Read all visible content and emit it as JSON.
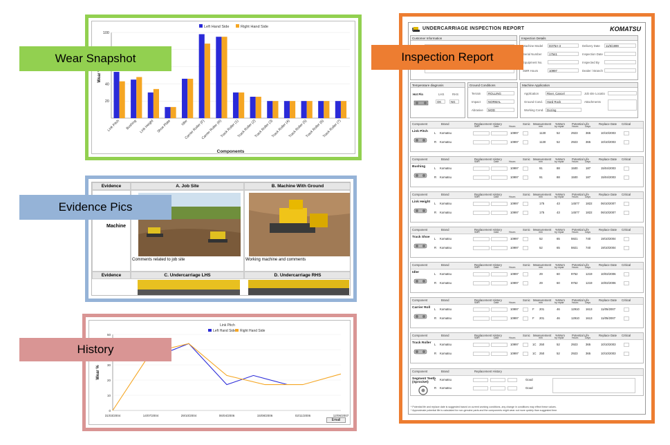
{
  "labels": {
    "wear": "Wear Snapshot",
    "evidence": "Evidence Pics",
    "history": "History",
    "report": "Inspection Report"
  },
  "colors": {
    "green": "#92d050",
    "blue": "#95b3d7",
    "pink": "#d99594",
    "orange": "#ed7d31",
    "left_series": "#2a2ad8",
    "right_series": "#f5a623"
  },
  "wear_chart": {
    "type": "bar",
    "title": "",
    "legend": [
      "Left Hand Side",
      "Right Hand Side"
    ],
    "xlabel": "Components",
    "ylabel": "Wear %",
    "ylim": [
      0,
      100
    ],
    "yticks": [
      20,
      40,
      60,
      80,
      100
    ],
    "categories": [
      "Link Pitch",
      "Bushing",
      "Link Height",
      "Shoe Plate",
      "Idler",
      "Carrier Roller (F)",
      "Carrier Roller (R)",
      "Track Roller (1)",
      "Track Roller (2)",
      "Track Roller (3)",
      "Track Roller (4)",
      "Track Roller (5)",
      "Track Roller (6)",
      "Track Roller (7)"
    ],
    "series": [
      {
        "name": "Left Hand Side",
        "values": [
          54,
          45,
          30,
          13,
          46,
          98,
          95,
          30,
          25,
          20,
          20,
          20,
          20,
          20
        ]
      },
      {
        "name": "Right Hand Side",
        "values": [
          43,
          48,
          34,
          13,
          46,
          87,
          95,
          30,
          25,
          20,
          20,
          20,
          20,
          20
        ]
      }
    ]
  },
  "evidence": {
    "col_label": "Evidence",
    "row_label": "Machine",
    "a_title": "A. Job Site",
    "b_title": "B. Machine With Ground",
    "a_caption": "Comments related to job site",
    "b_caption": "Working machine and comments",
    "c_title": "C. Undercarriage LHS",
    "d_title": "D. Undercarriage RHS"
  },
  "history_chart": {
    "type": "line",
    "title": "Link Pitch",
    "legend": [
      "Left Hand Side",
      "Right Hand Side"
    ],
    "ylabel": "Wear %",
    "ylim": [
      0,
      50
    ],
    "yticks": [
      0,
      10,
      20,
      30,
      40,
      50
    ],
    "x": [
      "31/03/2004",
      "14/07/2004",
      "29/10/2004",
      "06/04/2006",
      "15/08/2006",
      "02/11/2006",
      "12/06/2007"
    ],
    "x_pos": [
      0,
      1,
      2,
      3,
      4,
      5,
      6
    ],
    "series": [
      {
        "name": "Left Hand Side",
        "x": [
          1,
          2,
          3,
          3.7,
          4.6
        ],
        "values": [
          34,
          44,
          17,
          23,
          17
        ]
      },
      {
        "name": "Right Hand Side",
        "x": [
          0,
          1,
          2,
          3,
          4,
          5,
          6
        ],
        "values": [
          0,
          38,
          44,
          23,
          17,
          17,
          24
        ]
      }
    ],
    "button": "Email"
  },
  "report": {
    "title": "UNDERCARRIAGE INSPECTION  REPORT",
    "logo": "KOMATSU",
    "customer_info": "Customer Information",
    "inspection_details": "Inspection Details",
    "fields": {
      "machine_model": "Machine Model",
      "machine_model_val": "D375A-3",
      "delivery_date": "Delivery Date",
      "delivery_date_val": "11/5/1999",
      "serial_number": "Serial Number",
      "serial_number_val": "17541",
      "inspection_date": "Inspection Date",
      "equipment_no": "Equipment No.",
      "inspected_by": "Inspected By",
      "smr_hours": "SMR Hours",
      "smr_hours_val": "10997",
      "dealer_branch": "Dealer / Branch"
    },
    "temp": {
      "title": "Temperature diagnosis",
      "hot_pin": "Hot Pin",
      "lhs": "LHS",
      "rhs": "RHS",
      "lhs_val": "OK",
      "rhs_val": "NG"
    },
    "ground": {
      "title": "Ground Conditions",
      "terrain": "Terrain",
      "terrain_val": "ROLLING",
      "impact": "Impact",
      "impact_val": "NORMAL",
      "abrasive": "Abrasive",
      "abrasive_val": "MOD"
    },
    "application": {
      "title": "Machine Application",
      "application": "Application",
      "application_val": "River, Cancel",
      "job_site": "Job site Locatio",
      "ground": "Ground Cond.",
      "ground_val": "Hard Rock",
      "attachments": "Attachments",
      "working": "Working Cond.",
      "working_val": "Dozing"
    },
    "col_headers": {
      "component": "Component",
      "brand": "Brand",
      "repl_history": "Replacement History",
      "smr": "SMR",
      "date": "Date",
      "hours": "Hours",
      "sonic": "Sonic",
      "measurement": "Measurement",
      "mm": "mm",
      "pct_worn": "%Worn",
      "by_repair": "by repair",
      "potential_life": "Potential Life",
      "p_hours": "Hours",
      "days": "Days",
      "replace_date": "Replace Date",
      "critical": "Critical"
    },
    "components": [
      {
        "name": "Link Pitch",
        "rows": [
          {
            "side": "L",
            "brand": "Komatsu",
            "hours": "10997",
            "sonic": "",
            "meas": "1130",
            "worn": "52",
            "ph": "2923",
            "days": "365",
            "date": "10/10/2003"
          },
          {
            "side": "R",
            "brand": "Komatsu",
            "hours": "10997",
            "sonic": "",
            "meas": "1130",
            "worn": "52",
            "ph": "2923",
            "days": "365",
            "date": "10/10/2003"
          }
        ]
      },
      {
        "name": "Bushing",
        "rows": [
          {
            "side": "L",
            "brand": "Komatsu",
            "hours": "10997",
            "sonic": "",
            "meas": "91",
            "worn": "88",
            "ph": "1500",
            "days": "187",
            "date": "15/04/2003"
          },
          {
            "side": "R",
            "brand": "Komatsu",
            "hours": "10997",
            "sonic": "",
            "meas": "91",
            "worn": "88",
            "ph": "1500",
            "days": "187",
            "date": "15/04/2003"
          }
        ]
      },
      {
        "name": "Link Height",
        "rows": [
          {
            "side": "L",
            "brand": "Komatsu",
            "hours": "10997",
            "sonic": "",
            "meas": "175",
            "worn": "43",
            "ph": "14577",
            "days": "1822",
            "date": "06/10/2007"
          },
          {
            "side": "R",
            "brand": "Komatsu",
            "hours": "10997",
            "sonic": "",
            "meas": "175",
            "worn": "43",
            "ph": "14577",
            "days": "1822",
            "date": "06/10/2007"
          }
        ]
      },
      {
        "name": "Track Shoe",
        "rows": [
          {
            "side": "L",
            "brand": "Komatsu",
            "hours": "10997",
            "sonic": "",
            "meas": "52",
            "worn": "65",
            "ph": "5921",
            "days": "740",
            "date": "19/10/2004"
          },
          {
            "side": "R",
            "brand": "Komatsu",
            "hours": "10997",
            "sonic": "",
            "meas": "52",
            "worn": "65",
            "ph": "5921",
            "days": "740",
            "date": "19/10/2004"
          }
        ]
      },
      {
        "name": "Idler",
        "rows": [
          {
            "side": "L",
            "brand": "Komatsu",
            "hours": "10997",
            "sonic": "",
            "meas": "29",
            "worn": "60",
            "ph": "9752",
            "days": "1219",
            "date": "10/02/2006"
          },
          {
            "side": "R",
            "brand": "Komatsu",
            "hours": "10997",
            "sonic": "",
            "meas": "29",
            "worn": "60",
            "ph": "9752",
            "days": "1219",
            "date": "10/02/2006"
          }
        ]
      },
      {
        "name": "Carrier Roll",
        "rows": [
          {
            "side": "L",
            "brand": "Komatsu",
            "hours": "10997",
            "sonic": "F",
            "meas": "201",
            "worn": "46",
            "ph": "12910",
            "days": "1613",
            "date": "11/05/2007"
          },
          {
            "side": "R",
            "brand": "Komatsu",
            "hours": "10997",
            "sonic": "F",
            "meas": "201",
            "worn": "46",
            "ph": "12910",
            "days": "1613",
            "date": "11/05/2007"
          }
        ]
      },
      {
        "name": "Track Roller",
        "rows": [
          {
            "side": "L",
            "brand": "Komatsu",
            "hours": "10997",
            "sonic": "1C",
            "meas": "250",
            "worn": "52",
            "ph": "2923",
            "days": "365",
            "date": "10/10/2003"
          },
          {
            "side": "R",
            "brand": "Komatsu",
            "hours": "10997",
            "sonic": "1C",
            "meas": "250",
            "worn": "52",
            "ph": "2923",
            "days": "365",
            "date": "10/10/2003"
          }
        ]
      }
    ],
    "segment": {
      "name": "Segment Teeth (Sprocket)",
      "judgement": "Judgement",
      "comments": "Comments",
      "rows": [
        {
          "side": "L",
          "brand": "Komatsu",
          "judge": "Good"
        },
        {
          "side": "R",
          "brand": "Komatsu",
          "judge": "Good"
        }
      ]
    },
    "footnote1": "* Potential life and replace date is suggested based on current working conditions, any change in conditions may effect these values.",
    "footnote2": "* Approximate potential life is calculated for non-genuine parts and the components might wear out more quickly than suggested time."
  }
}
